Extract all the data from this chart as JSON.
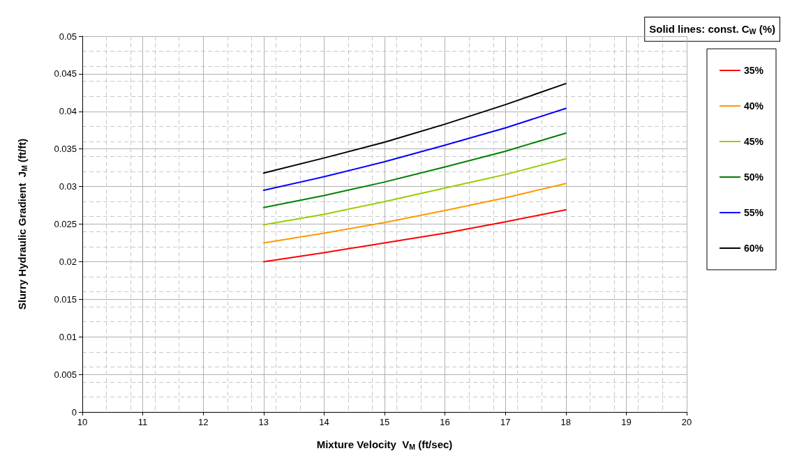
{
  "chart_data": {
    "type": "line",
    "xlabel": "Mixture Velocity  V$_{M}$ (ft/sec)",
    "ylabel": "Slurry Hydraulic Gradient  J$_{M}$ (ft/ft)",
    "legend_title": "Solid lines: const. C$_{W}$ (%)",
    "x": [
      13,
      14,
      15,
      16,
      17,
      18
    ],
    "series": [
      {
        "name": "35%",
        "color": "#ff0000",
        "values": [
          0.02,
          0.0212,
          0.0225,
          0.0238,
          0.0253,
          0.0269
        ]
      },
      {
        "name": "40%",
        "color": "#ff9900",
        "values": [
          0.0225,
          0.0238,
          0.0252,
          0.0268,
          0.0285,
          0.0304
        ]
      },
      {
        "name": "45%",
        "color": "#99cc00",
        "values": [
          0.0249,
          0.0263,
          0.028,
          0.0298,
          0.0316,
          0.0337
        ]
      },
      {
        "name": "50%",
        "color": "#008000",
        "values": [
          0.0272,
          0.0288,
          0.0306,
          0.0326,
          0.0347,
          0.0371
        ]
      },
      {
        "name": "55%",
        "color": "#0000ff",
        "values": [
          0.0295,
          0.0313,
          0.0333,
          0.0355,
          0.0378,
          0.0404
        ]
      },
      {
        "name": "60%",
        "color": "#000000",
        "values": [
          0.0318,
          0.0338,
          0.0359,
          0.0383,
          0.0409,
          0.0437
        ]
      }
    ],
    "xlim": [
      10,
      20
    ],
    "xticks": [
      10,
      11,
      12,
      13,
      14,
      15,
      16,
      17,
      18,
      19,
      20
    ],
    "ylim": [
      0,
      0.05
    ],
    "yticks": [
      0,
      0.005,
      0.01,
      0.015,
      0.02,
      0.025,
      0.03,
      0.035,
      0.04,
      0.045,
      0.05
    ],
    "grid": true,
    "legend": "right",
    "marker": "none",
    "line_style": "solid"
  }
}
